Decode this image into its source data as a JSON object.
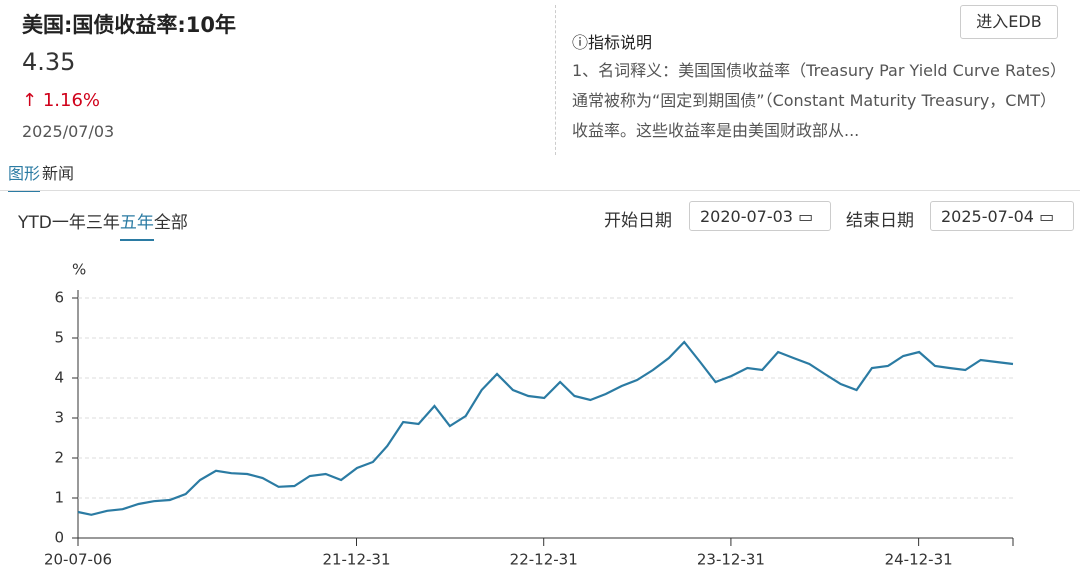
{
  "header": {
    "title": "美国:国债收益率:10年",
    "value": "4.35",
    "change": "1.16%",
    "date": "2025/07/03",
    "button": "进入EDB",
    "description_title": "指标说明",
    "description": "1、名词释义：美国国债收益率（Treasury Par Yield Curve Rates）通常被称为“固定到期国债”（Constant Maturity Treasury，CMT）收益率。这些收益率是由美国财政部从..."
  },
  "tabs": [
    "图形",
    "新闻"
  ],
  "ranges": [
    "YTD",
    "一年",
    "三年",
    "五年",
    "全部"
  ],
  "start_label": "开始日期",
  "start_date": "2020-07-03",
  "end_label": "结束日期",
  "end_date": "2025-07-04",
  "chart_data": {
    "type": "line",
    "y_label": "%",
    "color": "#2b7ba3",
    "grid": true,
    "xlim": [
      "20-07-06",
      "25-07-03"
    ],
    "xticks": [
      "20-07-06",
      "21-12-31",
      "22-12-31",
      "23-12-31",
      "24-12-31"
    ],
    "ylim": [
      0,
      6
    ],
    "yticks": [
      0,
      1,
      2,
      3,
      4,
      5,
      6
    ],
    "x": [
      "20-07-06",
      "20-08-01",
      "20-09-01",
      "20-10-01",
      "20-11-01",
      "20-12-01",
      "21-01-01",
      "21-02-01",
      "21-03-01",
      "21-04-01",
      "21-05-01",
      "21-06-01",
      "21-07-01",
      "21-08-01",
      "21-09-01",
      "21-10-01",
      "21-11-01",
      "21-12-01",
      "22-01-01",
      "22-02-01",
      "22-03-01",
      "22-04-01",
      "22-05-01",
      "22-06-01",
      "22-07-01",
      "22-08-01",
      "22-09-01",
      "22-10-01",
      "22-11-01",
      "22-12-01",
      "23-01-01",
      "23-02-01",
      "23-03-01",
      "23-04-01",
      "23-05-01",
      "23-06-01",
      "23-07-01",
      "23-08-01",
      "23-09-01",
      "23-10-01",
      "23-11-01",
      "23-12-01",
      "24-01-01",
      "24-02-01",
      "24-03-01",
      "24-04-01",
      "24-05-01",
      "24-06-01",
      "24-07-01",
      "24-08-01",
      "24-09-01",
      "24-10-01",
      "24-11-01",
      "24-12-01",
      "25-01-01",
      "25-02-01",
      "25-03-01",
      "25-04-01",
      "25-05-01",
      "25-06-01",
      "25-07-03"
    ],
    "series": [
      {
        "name": "美国:国债收益率:10年",
        "values": [
          0.65,
          0.58,
          0.68,
          0.72,
          0.85,
          0.92,
          0.95,
          1.1,
          1.45,
          1.68,
          1.62,
          1.6,
          1.5,
          1.28,
          1.3,
          1.55,
          1.6,
          1.45,
          1.75,
          1.9,
          2.3,
          2.9,
          2.85,
          3.3,
          2.8,
          3.05,
          3.7,
          4.1,
          3.7,
          3.55,
          3.5,
          3.9,
          3.55,
          3.45,
          3.6,
          3.8,
          3.95,
          4.2,
          4.5,
          4.9,
          4.4,
          3.9,
          4.05,
          4.25,
          4.2,
          4.65,
          4.5,
          4.35,
          4.1,
          3.85,
          3.7,
          4.25,
          4.3,
          4.55,
          4.65,
          4.3,
          4.25,
          4.2,
          4.45,
          4.4,
          4.35
        ]
      }
    ]
  }
}
